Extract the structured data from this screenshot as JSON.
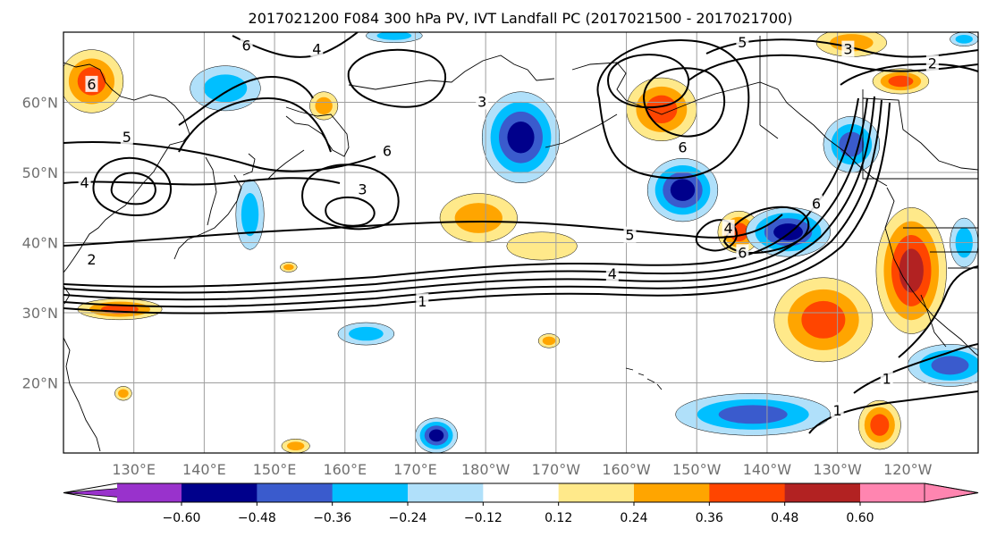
{
  "title": "2017021200 F084 300 hPa PV, IVT Landfall PC (2017021500 - 2017021700)",
  "map": {
    "lon_range": [
      120,
      250
    ],
    "lat_range": [
      10,
      70
    ],
    "lat_ticks": [
      {
        "value": 20,
        "label": "20°N"
      },
      {
        "value": 30,
        "label": "30°N"
      },
      {
        "value": 40,
        "label": "40°N"
      },
      {
        "value": 50,
        "label": "50°N"
      },
      {
        "value": 60,
        "label": "60°N"
      }
    ],
    "lon_ticks": [
      {
        "value": 130,
        "label": "130°E"
      },
      {
        "value": 140,
        "label": "140°E"
      },
      {
        "value": 150,
        "label": "150°E"
      },
      {
        "value": 160,
        "label": "160°E"
      },
      {
        "value": 170,
        "label": "170°E"
      },
      {
        "value": 180,
        "label": "180°W"
      },
      {
        "value": 190,
        "label": "170°W"
      },
      {
        "value": 200,
        "label": "160°W"
      },
      {
        "value": 210,
        "label": "150°W"
      },
      {
        "value": 220,
        "label": "140°W"
      },
      {
        "value": 230,
        "label": "130°W"
      },
      {
        "value": 240,
        "label": "120°W"
      }
    ],
    "gridlines": true,
    "fill_anomalies": [
      {
        "lon": 124,
        "lat": 63,
        "rx": 4.5,
        "ry": 4.5,
        "level": 0.42
      },
      {
        "lon": 143,
        "lat": 62,
        "rx": 5,
        "ry": 3.2,
        "level": -0.3
      },
      {
        "lon": 157,
        "lat": 59.5,
        "rx": 2,
        "ry": 2,
        "level": 0.3
      },
      {
        "lon": 146.5,
        "lat": 44,
        "rx": 2,
        "ry": 5,
        "level": -0.27
      },
      {
        "lon": 128,
        "lat": 30.5,
        "rx": 6,
        "ry": 1.5,
        "level": 0.38
      },
      {
        "lon": 185,
        "lat": 55,
        "rx": 5.5,
        "ry": 6.5,
        "level": -0.5
      },
      {
        "lon": 179,
        "lat": 43.5,
        "rx": 5.5,
        "ry": 3.5,
        "level": 0.3
      },
      {
        "lon": 188,
        "lat": 39.5,
        "rx": 5,
        "ry": 2,
        "level": 0.2
      },
      {
        "lon": 205,
        "lat": 59,
        "rx": 5,
        "ry": 4.5,
        "level": 0.42
      },
      {
        "lon": 208,
        "lat": 47.5,
        "rx": 5,
        "ry": 4.5,
        "level": -0.5
      },
      {
        "lon": 216,
        "lat": 41.5,
        "rx": 3,
        "ry": 3,
        "level": 0.4
      },
      {
        "lon": 223,
        "lat": 41.5,
        "rx": 6,
        "ry": 3.5,
        "level": -0.5
      },
      {
        "lon": 232,
        "lat": 54,
        "rx": 4,
        "ry": 4,
        "level": -0.45
      },
      {
        "lon": 239,
        "lat": 63,
        "rx": 4,
        "ry": 1.8,
        "level": 0.4
      },
      {
        "lon": 240.5,
        "lat": 36,
        "rx": 5,
        "ry": 9,
        "level": 0.55
      },
      {
        "lon": 228,
        "lat": 29,
        "rx": 7,
        "ry": 6,
        "level": 0.4
      },
      {
        "lon": 246,
        "lat": 22.5,
        "rx": 6,
        "ry": 3,
        "level": -0.38
      },
      {
        "lon": 248,
        "lat": 40,
        "rx": 2,
        "ry": 3.5,
        "level": -0.35
      },
      {
        "lon": 163,
        "lat": 27,
        "rx": 4,
        "ry": 1.6,
        "level": -0.3
      },
      {
        "lon": 173,
        "lat": 12.5,
        "rx": 3,
        "ry": 2.5,
        "level": -0.52
      },
      {
        "lon": 189,
        "lat": 26,
        "rx": 1.5,
        "ry": 1,
        "level": 0.3
      },
      {
        "lon": 218,
        "lat": 15.5,
        "rx": 11,
        "ry": 3,
        "level": -0.38
      },
      {
        "lon": 236,
        "lat": 14,
        "rx": 3,
        "ry": 3.5,
        "level": 0.38
      },
      {
        "lon": 153,
        "lat": 11,
        "rx": 2,
        "ry": 1,
        "level": 0.3
      },
      {
        "lon": 128.5,
        "lat": 18.5,
        "rx": 1.2,
        "ry": 1,
        "level": 0.3
      },
      {
        "lon": 152,
        "lat": 36.5,
        "rx": 1.2,
        "ry": 0.7,
        "level": 0.3
      },
      {
        "lon": 167,
        "lat": 69.5,
        "rx": 4,
        "ry": 1,
        "level": -0.3
      },
      {
        "lon": 232,
        "lat": 68.5,
        "rx": 5,
        "ry": 2,
        "level": 0.35
      },
      {
        "lon": 248,
        "lat": 69,
        "rx": 2,
        "ry": 1,
        "level": -0.28
      }
    ]
  },
  "contour_labels": [
    {
      "text": "6",
      "lon": 146,
      "lat": 68
    },
    {
      "text": "4",
      "lon": 156,
      "lat": 67.5
    },
    {
      "text": "3",
      "lon": 179.5,
      "lat": 60
    },
    {
      "text": "5",
      "lon": 129,
      "lat": 55
    },
    {
      "text": "4",
      "lon": 123,
      "lat": 48.5
    },
    {
      "text": "2",
      "lon": 124,
      "lat": 37.5
    },
    {
      "text": "6",
      "lon": 124,
      "lat": 62.5
    },
    {
      "text": "6",
      "lon": 166,
      "lat": 53
    },
    {
      "text": "3",
      "lon": 162.5,
      "lat": 47.5
    },
    {
      "text": "5",
      "lon": 200.5,
      "lat": 41
    },
    {
      "text": "4",
      "lon": 198,
      "lat": 35.5
    },
    {
      "text": "1",
      "lon": 171,
      "lat": 31.5
    },
    {
      "text": "6",
      "lon": 208,
      "lat": 53.5
    },
    {
      "text": "4",
      "lon": 214.5,
      "lat": 42
    },
    {
      "text": "6",
      "lon": 216.5,
      "lat": 38.5
    },
    {
      "text": "6",
      "lon": 227,
      "lat": 45.5
    },
    {
      "text": "5",
      "lon": 216.5,
      "lat": 68.5
    },
    {
      "text": "3",
      "lon": 231.5,
      "lat": 67.5
    },
    {
      "text": "2",
      "lon": 243.5,
      "lat": 65.5
    },
    {
      "text": "1",
      "lon": 237,
      "lat": 20.5
    },
    {
      "text": "1",
      "lon": 230,
      "lat": 16
    }
  ],
  "colorbar": {
    "levels": [
      -0.6,
      -0.48,
      -0.36,
      -0.24,
      -0.12,
      0.12,
      0.24,
      0.36,
      0.48,
      0.6
    ],
    "tick_labels": [
      "−0.60",
      "−0.48",
      "−0.36",
      "−0.24",
      "−0.12",
      "0.12",
      "0.24",
      "0.36",
      "0.48",
      "0.60"
    ],
    "colors": [
      "#9932cc",
      "#00008b",
      "#3a5bcd",
      "#00bfff",
      "#b0e0fa",
      "#ffffff",
      "#ffe98a",
      "#ffa500",
      "#ff4500",
      "#b22222",
      "#ff85b0"
    ]
  }
}
